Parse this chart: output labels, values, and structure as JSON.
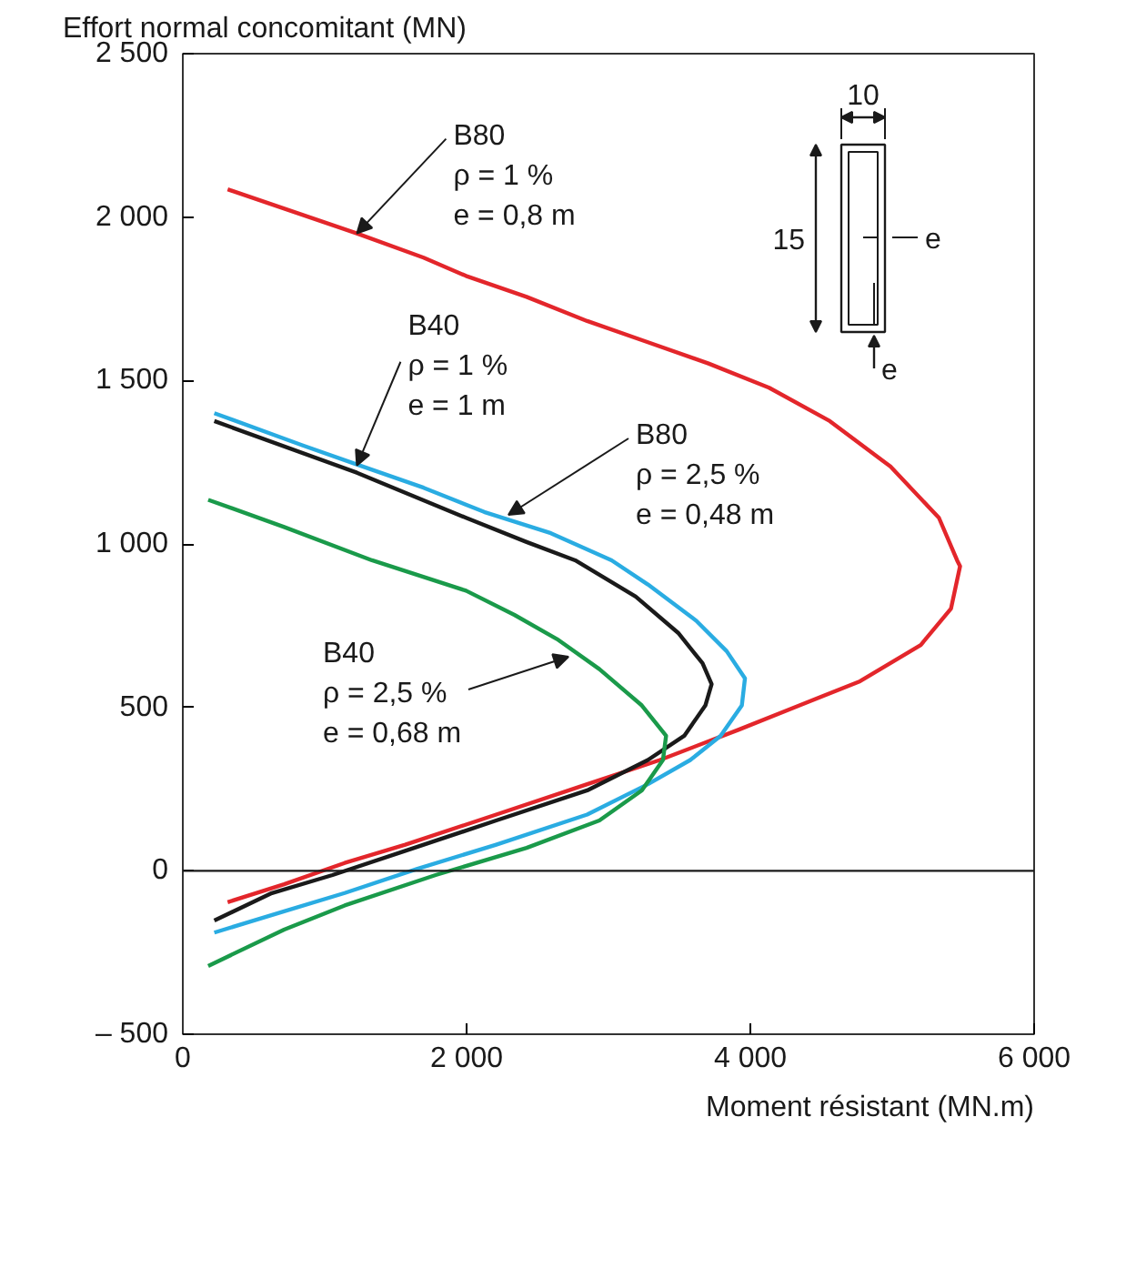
{
  "chart_data": {
    "type": "line",
    "xlabel": "Moment résistant (MN.m)",
    "ylabel": "Effort normal concomitant (MN)",
    "xlim": [
      0,
      6000
    ],
    "ylim": [
      -500,
      2500
    ],
    "xticks": [
      0,
      {
        "value": 2000,
        "label": "2 000"
      },
      {
        "value": 4000,
        "label": "4 000"
      },
      {
        "value": 6000,
        "label": "6 000"
      }
    ],
    "yticks": [
      {
        "value": -500,
        "label": "– 500"
      },
      0,
      500,
      {
        "value": 1000,
        "label": "1 000"
      },
      {
        "value": 1500,
        "label": "1 500"
      },
      {
        "value": 2000,
        "label": "2 000"
      },
      {
        "value": 2500,
        "label": "2 500"
      }
    ],
    "grid": false,
    "marker": "none",
    "line_style": "solid",
    "ref_lines": [
      {
        "axis": "y",
        "value": 0,
        "color": "#1a1a1a"
      }
    ],
    "series": [
      {
        "color": "#e3262b",
        "x": [
          316,
          1227,
          1697,
          1996,
          2423,
          2850,
          3278,
          3705,
          4132,
          4560,
          4987,
          5329,
          5457,
          5478,
          5414,
          5201,
          4773,
          4346,
          3919,
          3363,
          2850,
          2209,
          1568,
          1141,
          714,
          316
        ],
        "values": [
          2085,
          1950,
          1876,
          1820,
          1756,
          1682,
          1617,
          1552,
          1478,
          1376,
          1237,
          1080,
          950,
          932,
          802,
          691,
          580,
          506,
          432,
          339,
          265,
          172,
          80,
          24,
          -41,
          -96
        ]
      },
      {
        "color": "#2aace2",
        "x": [
          222,
          842,
          1227,
          1697,
          2124,
          2594,
          3022,
          3278,
          3619,
          3833,
          3962,
          3940,
          3790,
          3577,
          3278,
          2850,
          2209,
          1654,
          1141,
          714,
          222
        ],
        "values": [
          1400,
          1302,
          1243,
          1172,
          1098,
          1033,
          950,
          876,
          765,
          672,
          589,
          506,
          413,
          339,
          265,
          172,
          80,
          6,
          -68,
          -124,
          -189
        ]
      },
      {
        "color": "#1a1a1a",
        "x": [
          222,
          1227,
          1996,
          2423,
          2765,
          3192,
          3491,
          3663,
          3727,
          3683,
          3534,
          3278,
          2850,
          2209,
          1568,
          1055,
          628,
          222
        ],
        "values": [
          1376,
          1218,
          1080,
          1006,
          950,
          839,
          728,
          635,
          571,
          506,
          413,
          339,
          246,
          154,
          61,
          -13,
          -68,
          -152
        ]
      },
      {
        "color": "#1a9a4a",
        "x": [
          179,
          714,
          1333,
          1996,
          2337,
          2637,
          2936,
          3235,
          3406,
          3384,
          3235,
          2936,
          2423,
          1782,
          1141,
          714,
          179
        ],
        "values": [
          1135,
          1052,
          950,
          857,
          783,
          709,
          617,
          506,
          413,
          339,
          246,
          154,
          70,
          -13,
          -106,
          -180,
          -291
        ]
      }
    ],
    "annotations": [
      {
        "text": "B80\nρ = 1 %\ne = 0,8 m",
        "x": 1227,
        "y": 1950
      },
      {
        "text": "B40\nρ = 1 %\ne = 1 m",
        "x": 1227,
        "y": 1240
      },
      {
        "text": "B80\nρ = 2,5 %\ne = 0,48 m",
        "x": 2295,
        "y": 1089
      },
      {
        "text": "B40\nρ = 2,5 %\ne = 0,68 m",
        "x": 2718,
        "y": 655
      },
      "10",
      "15",
      "e",
      "e"
    ]
  }
}
